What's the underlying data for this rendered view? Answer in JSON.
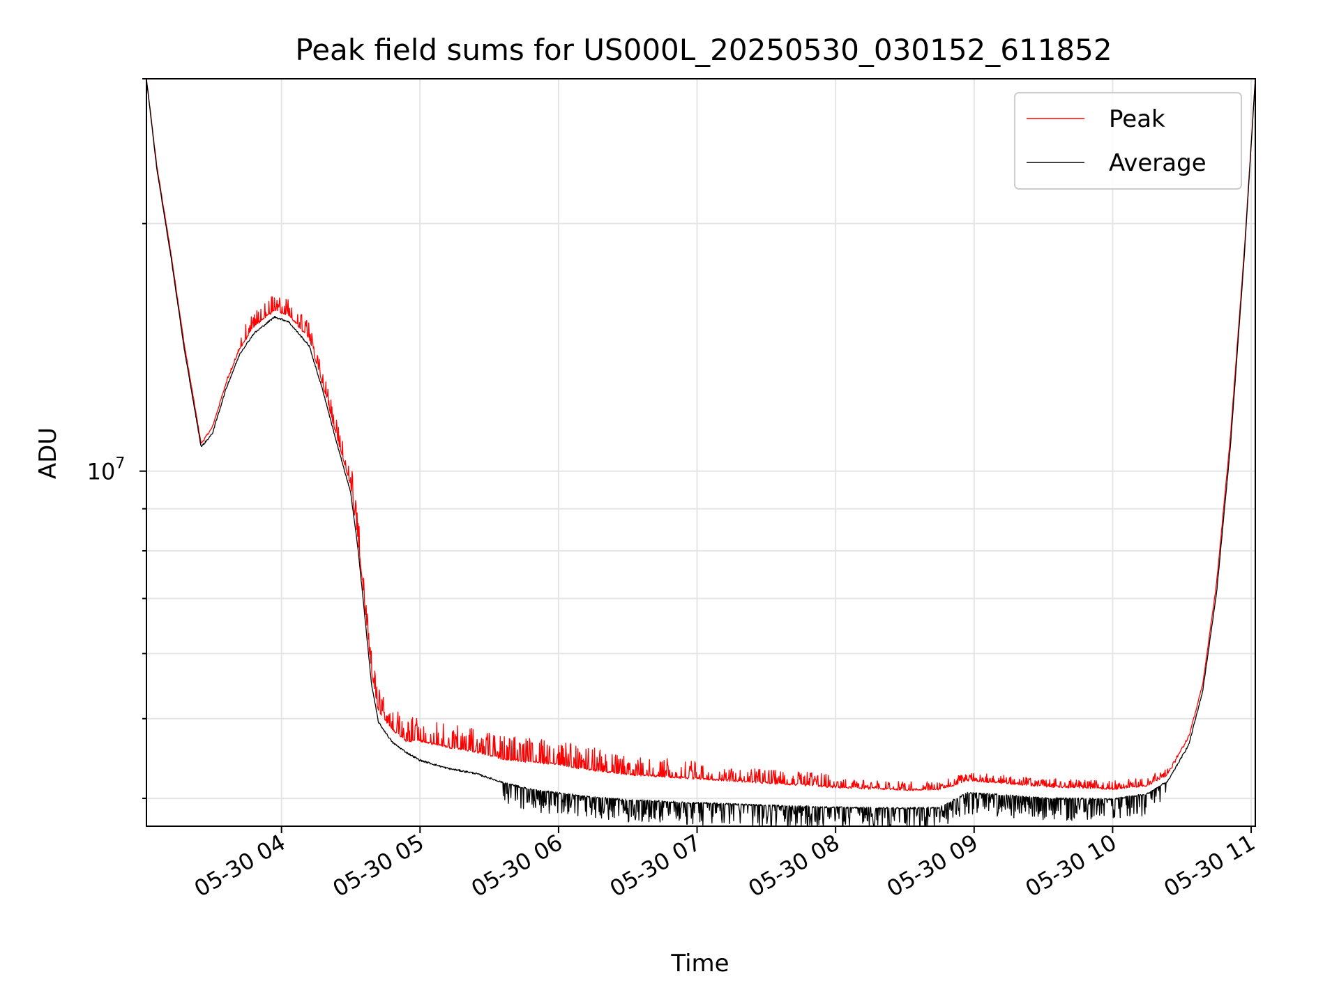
{
  "chart_data": {
    "type": "line",
    "title": "Peak field sums for US000L_20250530_030152_611852",
    "xlabel": "Time",
    "ylabel": "ADU",
    "x_axis_type": "time",
    "x_ticks": [
      "05-30 04",
      "05-30 05",
      "05-30 06",
      "05-30 07",
      "05-30 08",
      "05-30 09",
      "05-30 10",
      "05-30 11"
    ],
    "x_tick_hours": [
      4,
      5,
      6,
      7,
      8,
      9,
      10,
      11
    ],
    "xlim_hours": [
      3.025,
      11.03
    ],
    "y_scale": "log",
    "ylim": [
      3700000.0,
      30000000.0
    ],
    "y_major_ticks": [
      {
        "value": 10000000.0,
        "base": "10",
        "exp": "7"
      }
    ],
    "grid": true,
    "legend_position": "top-right",
    "series": [
      {
        "name": "Peak",
        "color": "#ff0000",
        "x_hours": [
          3.025,
          3.1,
          3.2,
          3.3,
          3.42,
          3.5,
          3.6,
          3.7,
          3.8,
          3.95,
          4.05,
          4.2,
          4.3,
          4.4,
          4.5,
          4.55,
          4.6,
          4.65,
          4.7,
          4.8,
          4.9,
          5.0,
          5.2,
          5.4,
          5.6,
          5.8,
          6.0,
          6.2,
          6.5,
          7.0,
          7.5,
          8.0,
          8.5,
          8.75,
          8.95,
          9.2,
          9.5,
          10.0,
          10.25,
          10.4,
          10.55,
          10.65,
          10.75,
          10.85,
          10.95,
          11.03
        ],
        "y": [
          30000000,
          23500000,
          18500000,
          14200000,
          10800000,
          11300000,
          12800000,
          14100000,
          15000000,
          15700000,
          15500000,
          14500000,
          12700000,
          11000000,
          9600000,
          8300000,
          6900000,
          5700000,
          5100000,
          4850000,
          4700000,
          4700000,
          4620000,
          4560000,
          4470000,
          4430000,
          4400000,
          4340000,
          4280000,
          4230000,
          4180000,
          4130000,
          4100000,
          4100000,
          4210000,
          4180000,
          4140000,
          4110000,
          4150000,
          4280000,
          4750000,
          5500000,
          7300000,
          11000000,
          18500000,
          30000000
        ]
      },
      {
        "name": "Average",
        "color": "#000000",
        "x_hours": [
          3.025,
          3.1,
          3.2,
          3.3,
          3.42,
          3.5,
          3.6,
          3.7,
          3.8,
          3.95,
          4.05,
          4.2,
          4.3,
          4.4,
          4.5,
          4.55,
          4.6,
          4.65,
          4.7,
          4.8,
          4.9,
          5.0,
          5.2,
          5.4,
          5.6,
          5.8,
          6.0,
          6.2,
          6.5,
          7.0,
          7.5,
          8.0,
          8.5,
          8.75,
          8.95,
          9.2,
          9.5,
          10.0,
          10.25,
          10.4,
          10.55,
          10.65,
          10.75,
          10.85,
          10.95,
          11.03
        ],
        "y": [
          30000000,
          23300000,
          18300000,
          14000000,
          10700000,
          11100000,
          12600000,
          13900000,
          14700000,
          15400000,
          15200000,
          14200000,
          12500000,
          10800000,
          9400000,
          8100000,
          6700000,
          5500000,
          4950000,
          4680000,
          4550000,
          4450000,
          4350000,
          4290000,
          4180000,
          4100000,
          4060000,
          4020000,
          3980000,
          3950000,
          3920000,
          3900000,
          3890000,
          3900000,
          4060000,
          4040000,
          4000000,
          3990000,
          4050000,
          4200000,
          4650000,
          5400000,
          7100000,
          10700000,
          18200000,
          30000000
        ]
      }
    ]
  }
}
